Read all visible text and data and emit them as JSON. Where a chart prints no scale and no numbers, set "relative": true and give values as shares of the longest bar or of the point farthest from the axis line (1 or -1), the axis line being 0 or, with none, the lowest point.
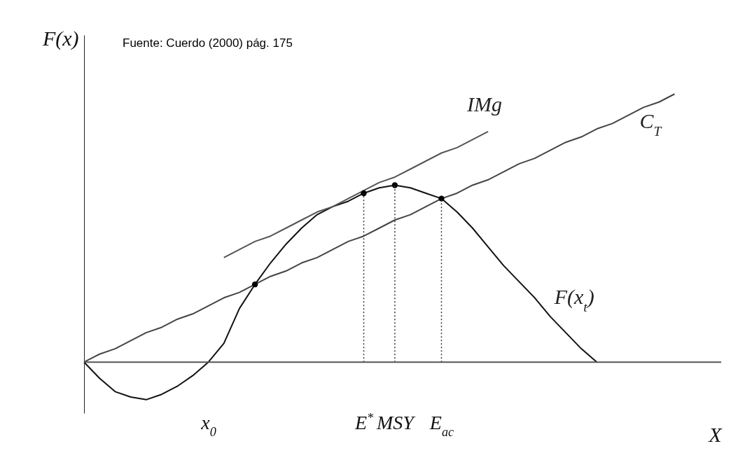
{
  "chart_data": {
    "type": "line",
    "relative": true,
    "ylabel": "F(x)",
    "xlabel": "X",
    "grid": false,
    "categories": [
      null,
      null,
      null,
      null,
      null,
      null,
      null,
      null,
      "x$_{0}$",
      null,
      null,
      null,
      null,
      null,
      null,
      null,
      null,
      null,
      "E$^{*}$",
      null,
      "MSY",
      null,
      null,
      "E$_{ac}$",
      null,
      null,
      null,
      null,
      null,
      null,
      null,
      null,
      null,
      null,
      null,
      null,
      null,
      null,
      null,
      null,
      null,
      null
    ],
    "annotations": [
      "Fuente: Cuerdo (2000) pág. 175"
    ],
    "series": [
      {
        "name": "F(x$_{t}$)",
        "color": "#111111",
        "values": [
          0,
          -0.06,
          -0.11,
          -0.13,
          -0.14,
          -0.12,
          -0.09,
          -0.05,
          0,
          0.07,
          0.2,
          0.29,
          0.37,
          0.44,
          0.5,
          0.55,
          0.58,
          0.6,
          0.63,
          0.65,
          0.66,
          0.65,
          0.63,
          0.61,
          0.56,
          0.5,
          0.43,
          0.36,
          0.3,
          0.24,
          0.17,
          0.11,
          0.05,
          0,
          null,
          null,
          null,
          null,
          null,
          null,
          null,
          null
        ]
      },
      {
        "name": "C$_{T}$",
        "color": "#444444",
        "values": [
          0,
          0.03,
          0.05,
          0.08,
          0.11,
          0.13,
          0.16,
          0.18,
          0.21,
          0.24,
          0.26,
          0.29,
          0.32,
          0.34,
          0.37,
          0.39,
          0.42,
          0.45,
          0.47,
          0.5,
          0.53,
          0.55,
          0.58,
          0.61,
          0.63,
          0.66,
          0.68,
          0.71,
          0.74,
          0.76,
          0.79,
          0.82,
          0.84,
          0.87,
          0.89,
          0.92,
          0.95,
          0.97,
          1,
          null,
          null,
          null
        ]
      },
      {
        "name": "IMg",
        "color": "#555555",
        "values": [
          null,
          null,
          null,
          null,
          null,
          null,
          null,
          null,
          null,
          0.39,
          0.42,
          0.45,
          0.47,
          0.5,
          0.53,
          0.56,
          0.58,
          0.61,
          0.64,
          0.67,
          0.69,
          0.72,
          0.75,
          0.78,
          0.8,
          0.83,
          0.86,
          null,
          null,
          null,
          null,
          null,
          null,
          null,
          null,
          null,
          null,
          null,
          null,
          null,
          null,
          null
        ]
      },
      {
        "type": "scatter",
        "marker": "circle",
        "color": "#000000",
        "values": [
          null,
          null,
          null,
          null,
          null,
          null,
          null,
          null,
          null,
          null,
          null,
          0.29,
          null,
          null,
          null,
          null,
          null,
          null,
          0.63,
          null,
          0.66,
          null,
          null,
          0.61,
          null,
          null,
          null,
          null,
          null,
          null,
          null,
          null,
          null,
          null,
          null,
          null,
          null,
          null,
          null,
          null,
          null,
          null
        ]
      },
      {
        "line_style": "dotted",
        "color": "#333333",
        "x": [
          "E$^{*}$",
          "E$^{*}$"
        ],
        "values": [
          0,
          0.63
        ]
      },
      {
        "line_style": "dotted",
        "color": "#333333",
        "x": [
          "MSY",
          "MSY"
        ],
        "values": [
          0,
          0.66
        ]
      },
      {
        "line_style": "dotted",
        "color": "#333333",
        "x": [
          "E$_{ac}$",
          "E$_{ac}$"
        ],
        "values": [
          0,
          0.61
        ]
      }
    ]
  }
}
